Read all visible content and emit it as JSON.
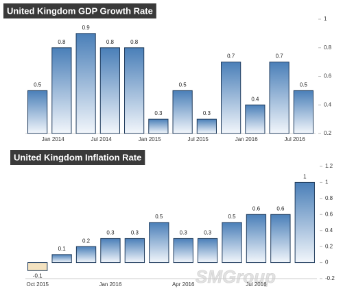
{
  "chart_data": [
    {
      "type": "bar",
      "title": "United Kingdom GDP Growth Rate",
      "categories": [
        null,
        "Jan 2014",
        null,
        "Jul 2014",
        null,
        "Jan 2015",
        null,
        "Jul 2015",
        null,
        "Jan 2016",
        null,
        "Jul 2016"
      ],
      "values": [
        0.5,
        0.8,
        0.9,
        0.8,
        0.8,
        0.3,
        0.5,
        0.3,
        0.7,
        0.4,
        0.7,
        0.5
      ],
      "color": "#4f81bd",
      "ylim": [
        0.2,
        1
      ],
      "yticks": [
        0.2,
        0.4,
        0.6,
        0.8,
        1
      ]
    },
    {
      "type": "bar",
      "title": "United Kingdom Inflation Rate",
      "categories": [
        "Oct 2015",
        null,
        null,
        "Jan 2016",
        null,
        null,
        "Apr 2016",
        null,
        null,
        "Jul 2016",
        null,
        null
      ],
      "values": [
        -0.1,
        0.1,
        0.2,
        0.3,
        0.3,
        0.5,
        0.3,
        0.3,
        0.5,
        0.6,
        0.6,
        1
      ],
      "color": "#4f81bd",
      "negative_color": "#f3e2c0",
      "ylim": [
        -0.2,
        1.2
      ],
      "yticks": [
        -0.2,
        0,
        0.2,
        0.4,
        0.6,
        0.8,
        1,
        1.2
      ]
    }
  ],
  "watermark": "SMGroup"
}
